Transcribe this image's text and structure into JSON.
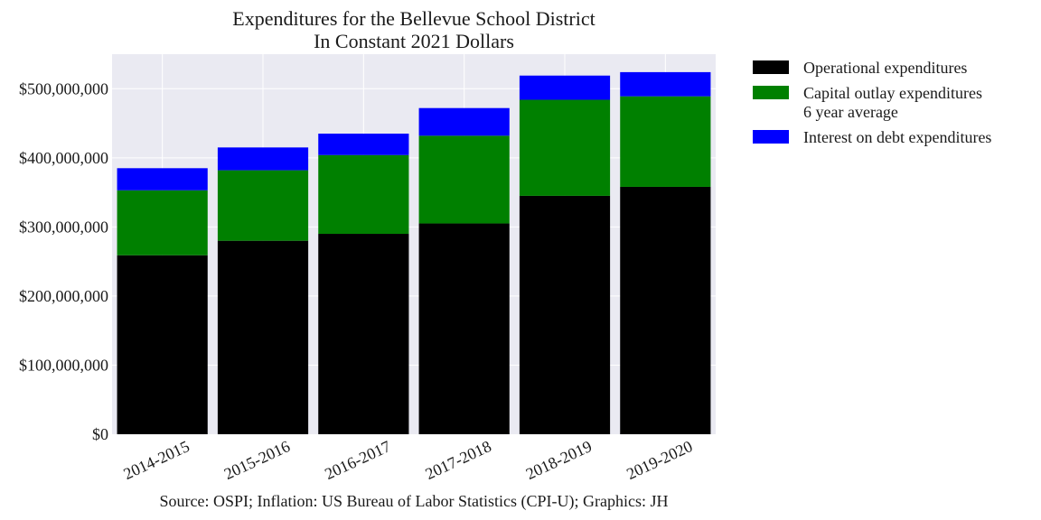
{
  "chart_data": {
    "type": "bar",
    "stacked": true,
    "title": "Expenditures for the Bellevue School District",
    "subtitle": "In Constant 2021 Dollars",
    "xlabel": "",
    "ylabel": "",
    "source": "Source: OSPI; Inflation: US Bureau of Labor Statistics (CPI-U); Graphics: JH",
    "categories": [
      "2014-2015",
      "2015-2016",
      "2016-2017",
      "2017-2018",
      "2018-2019",
      "2019-2020"
    ],
    "ylim": [
      0,
      550000000
    ],
    "yticks": [
      0,
      100000000,
      200000000,
      300000000,
      400000000,
      500000000
    ],
    "ytick_labels": [
      "$0",
      "$100,000,000",
      "$200,000,000",
      "$300,000,000",
      "$400,000,000",
      "$500,000,000"
    ],
    "grid": true,
    "legend_position": "outside-right",
    "series": [
      {
        "name": "Operational expenditures",
        "name_lines": [
          "Operational expenditures"
        ],
        "color": "#000000",
        "values": [
          259000000,
          280000000,
          290000000,
          305000000,
          345000000,
          358000000
        ]
      },
      {
        "name": "Capital outlay expenditures 6 year average",
        "name_lines": [
          "Capital outlay expenditures",
          "6 year average"
        ],
        "color": "#008000",
        "values": [
          94000000,
          102000000,
          114000000,
          127000000,
          139000000,
          131000000
        ]
      },
      {
        "name": "Interest on debt expenditures",
        "name_lines": [
          "Interest on debt expenditures"
        ],
        "color": "#0000ff",
        "values": [
          32000000,
          33000000,
          31000000,
          40000000,
          35000000,
          35000000
        ]
      }
    ]
  }
}
